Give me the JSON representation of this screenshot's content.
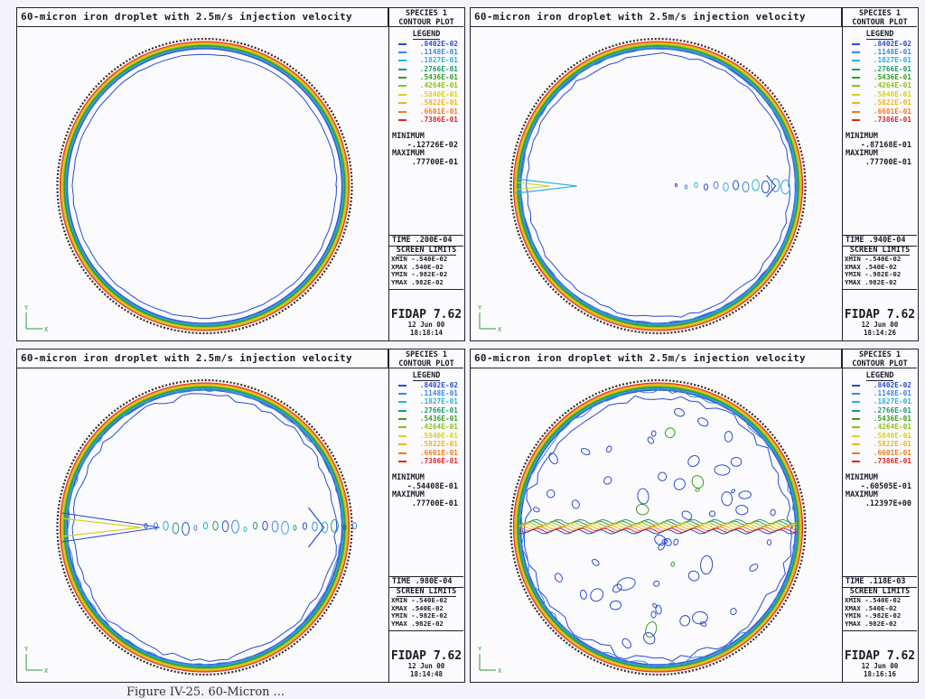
{
  "chart_data": {
    "type": "contour",
    "panels": [
      {
        "title": "60-micron iron droplet with 2.5m/s injection velocity",
        "species_title": [
          "SPECIES 1",
          "CONTOUR PLOT"
        ],
        "legend_header": "LEGEND",
        "levels": [
          ".8402E-02",
          ".1148E-01",
          ".1827E-01",
          ".2766E-01",
          ".5436E-01",
          ".4264E-01",
          ".5840E-01",
          ".5822E-01",
          ".6601E-01",
          ".7386E-01"
        ],
        "minimum_label": "MINIMUM",
        "minimum_value": "-.12726E-02",
        "maximum_label": "MAXIMUM",
        "maximum_value": ".77700E-01",
        "time_label": "TIME",
        "time_value": ".200E-04",
        "screen_limits_header": "SCREEN LIMITS",
        "screen_limits": [
          "XMIN -.540E-02",
          "XMAX  .540E-02",
          "YMIN -.982E-02",
          "YMAX  .982E-02"
        ],
        "software": "FIDAP 7.62",
        "date": "12 Jun 00",
        "time_of_day": "18:18:14",
        "axis_y": "Y",
        "axis_x": "X"
      },
      {
        "title": "60-micron iron droplet with 2.5m/s injection velocity",
        "species_title": [
          "SPECIES 1",
          "CONTOUR PLOT"
        ],
        "legend_header": "LEGEND",
        "levels": [
          ".8402E-02",
          ".1148E-01",
          ".1827E-01",
          ".2766E-01",
          ".5436E-01",
          ".4264E-01",
          ".5840E-01",
          ".5822E-01",
          ".6601E-01",
          ".7386E-01"
        ],
        "minimum_label": "MINIMUM",
        "minimum_value": "-.87168E-01",
        "maximum_label": "MAXIMUM",
        "maximum_value": ".77700E-01",
        "time_label": "TIME",
        "time_value": ".940E-04",
        "screen_limits_header": "SCREEN LIMITS",
        "screen_limits": [
          "XMIN -.540E-02",
          "XMAX  .540E-02",
          "YMIN -.982E-02",
          "YMAX  .982E-02"
        ],
        "software": "FIDAP 7.62",
        "date": "12 Jun 00",
        "time_of_day": "18:14:26",
        "axis_y": "Y",
        "axis_x": "X"
      },
      {
        "title": "60-micron iron droplet with 2.5m/s injection velocity",
        "species_title": [
          "SPECIES 1",
          "CONTOUR PLOT"
        ],
        "legend_header": "LEGEND",
        "levels": [
          ".8402E-02",
          ".1148E-01",
          ".1827E-01",
          ".2766E-01",
          ".5436E-01",
          ".4264E-01",
          ".5840E-01",
          ".5822E-01",
          ".6601E-01",
          ".7386E-01"
        ],
        "minimum_label": "MINIMUM",
        "minimum_value": "-.54408E-01",
        "maximum_label": "MAXIMUM",
        "maximum_value": ".77700E-01",
        "time_label": "TIME",
        "time_value": ".980E-04",
        "screen_limits_header": "SCREEN LIMITS",
        "screen_limits": [
          "XMIN -.540E-02",
          "XMAX  .540E-02",
          "YMIN -.982E-02",
          "YMAX  .982E-02"
        ],
        "software": "FIDAP 7.62",
        "date": "12 Jun 00",
        "time_of_day": "18:14:48",
        "axis_y": "Y",
        "axis_x": "X"
      },
      {
        "title": "60-micron iron droplet with 2.5m/s injection velocity",
        "species_title": [
          "SPECIES 1",
          "CONTOUR PLOT"
        ],
        "legend_header": "LEGEND",
        "levels": [
          ".8402E-02",
          ".1148E-01",
          ".1827E-01",
          ".2766E-01",
          ".5436E-01",
          ".4264E-01",
          ".5840E-01",
          ".5822E-01",
          ".6601E-01",
          ".7386E-01"
        ],
        "minimum_label": "MINIMUM",
        "minimum_value": "-.60505E-01",
        "maximum_label": "MAXIMUM",
        "maximum_value": ".12397E+00",
        "time_label": "TIME",
        "time_value": ".118E-03",
        "screen_limits_header": "SCREEN LIMITS",
        "screen_limits": [
          "XMIN -.540E-02",
          "XMAX  .540E-02",
          "YMIN -.982E-02",
          "YMAX  .982E-02"
        ],
        "software": "FIDAP 7.62",
        "date": "12 Jun 00",
        "time_of_day": "18:16:16",
        "axis_y": "Y",
        "axis_x": "X"
      }
    ],
    "level_colors": [
      "#2a4bd6",
      "#3f86e0",
      "#2ab0d8",
      "#1f9a6a",
      "#3c9a28",
      "#8fbf1a",
      "#d6d21a",
      "#f0b21e",
      "#f07d1c",
      "#e02424"
    ]
  },
  "caption": "Figure IV-25. 60-Micron ..."
}
